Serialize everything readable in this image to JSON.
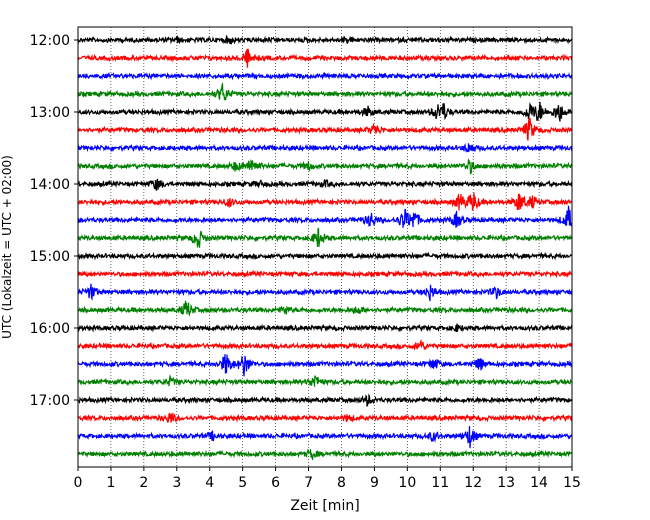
{
  "chart_data": {
    "type": "line",
    "title": "",
    "xlabel": "Zeit  [min]",
    "ylabel": "UTC (Lokalzeit = UTC + 02:00)",
    "xlim": [
      0,
      15
    ],
    "x_ticks": [
      0,
      1,
      2,
      3,
      4,
      5,
      6,
      7,
      8,
      9,
      10,
      11,
      12,
      13,
      14,
      15
    ],
    "x_tick_labels": [
      "0",
      "1",
      "2",
      "3",
      "4",
      "5",
      "6",
      "7",
      "8",
      "9",
      "10",
      "11",
      "12",
      "13",
      "14",
      "15"
    ],
    "y_tick_labels": [
      "12:00",
      "13:00",
      "14:00",
      "15:00",
      "16:00",
      "17:00"
    ],
    "grid": "vertical dotted",
    "legend": "none",
    "trace_interval_min": 15,
    "start_time": "12:00",
    "trace_colors": [
      "#000000",
      "#ff0000",
      "#0000ff",
      "#008000"
    ],
    "traces": [
      {
        "start": "12:00",
        "color": "#000000",
        "events": [
          {
            "t": 4.6,
            "a": 3
          },
          {
            "t": 8.2,
            "a": 2
          },
          {
            "t": 3.0,
            "a": 2
          }
        ]
      },
      {
        "start": "12:15",
        "color": "#ff0000",
        "events": [
          {
            "t": 5.15,
            "a": 9
          }
        ]
      },
      {
        "start": "12:30",
        "color": "#0000ff",
        "events": []
      },
      {
        "start": "12:45",
        "color": "#008000",
        "events": [
          {
            "t": 4.4,
            "a": 11
          }
        ]
      },
      {
        "start": "13:00",
        "color": "#000000",
        "events": [
          {
            "t": 8.8,
            "a": 5
          },
          {
            "t": 10.9,
            "a": 7
          },
          {
            "t": 11.1,
            "a": 8
          },
          {
            "t": 13.7,
            "a": 9
          },
          {
            "t": 14.0,
            "a": 11
          },
          {
            "t": 14.6,
            "a": 12
          }
        ]
      },
      {
        "start": "13:15",
        "color": "#ff0000",
        "events": [
          {
            "t": 9.0,
            "a": 6
          },
          {
            "t": 13.7,
            "a": 13
          }
        ]
      },
      {
        "start": "13:30",
        "color": "#0000ff",
        "events": [
          {
            "t": 11.9,
            "a": 6
          }
        ]
      },
      {
        "start": "13:45",
        "color": "#008000",
        "events": [
          {
            "t": 4.8,
            "a": 5
          },
          {
            "t": 5.3,
            "a": 9
          },
          {
            "t": 7.0,
            "a": 4
          },
          {
            "t": 11.9,
            "a": 7
          }
        ]
      },
      {
        "start": "14:00",
        "color": "#000000",
        "events": [
          {
            "t": 2.4,
            "a": 6
          },
          {
            "t": 5.5,
            "a": 3
          },
          {
            "t": 7.5,
            "a": 3
          }
        ]
      },
      {
        "start": "14:15",
        "color": "#ff0000",
        "events": [
          {
            "t": 4.6,
            "a": 4
          },
          {
            "t": 11.6,
            "a": 9
          },
          {
            "t": 12.0,
            "a": 11
          },
          {
            "t": 13.4,
            "a": 10
          },
          {
            "t": 13.8,
            "a": 6
          }
        ]
      },
      {
        "start": "14:30",
        "color": "#0000ff",
        "events": [
          {
            "t": 8.9,
            "a": 8
          },
          {
            "t": 9.9,
            "a": 11
          },
          {
            "t": 10.2,
            "a": 10
          },
          {
            "t": 11.5,
            "a": 8
          },
          {
            "t": 14.9,
            "a": 13
          }
        ]
      },
      {
        "start": "14:45",
        "color": "#008000",
        "events": [
          {
            "t": 3.65,
            "a": 11
          },
          {
            "t": 7.3,
            "a": 10
          }
        ]
      },
      {
        "start": "15:00",
        "color": "#000000",
        "events": []
      },
      {
        "start": "15:15",
        "color": "#ff0000",
        "events": []
      },
      {
        "start": "15:30",
        "color": "#0000ff",
        "events": [
          {
            "t": 0.4,
            "a": 8
          },
          {
            "t": 10.7,
            "a": 8
          },
          {
            "t": 12.7,
            "a": 6
          }
        ]
      },
      {
        "start": "15:45",
        "color": "#008000",
        "events": [
          {
            "t": 3.3,
            "a": 10
          },
          {
            "t": 6.3,
            "a": 4
          },
          {
            "t": 8.5,
            "a": 4
          }
        ]
      },
      {
        "start": "16:00",
        "color": "#000000",
        "events": [
          {
            "t": 11.5,
            "a": 3
          }
        ]
      },
      {
        "start": "16:15",
        "color": "#ff0000",
        "events": [
          {
            "t": 10.4,
            "a": 6
          }
        ]
      },
      {
        "start": "16:30",
        "color": "#0000ff",
        "events": [
          {
            "t": 4.5,
            "a": 12
          },
          {
            "t": 5.05,
            "a": 13
          },
          {
            "t": 10.8,
            "a": 6
          },
          {
            "t": 12.2,
            "a": 7
          }
        ]
      },
      {
        "start": "16:45",
        "color": "#008000",
        "events": [
          {
            "t": 2.8,
            "a": 4
          },
          {
            "t": 7.2,
            "a": 8
          }
        ]
      },
      {
        "start": "17:00",
        "color": "#000000",
        "events": [
          {
            "t": 8.8,
            "a": 5
          }
        ]
      },
      {
        "start": "17:15",
        "color": "#ff0000",
        "events": [
          {
            "t": 2.8,
            "a": 6
          },
          {
            "t": 8.2,
            "a": 3
          }
        ]
      },
      {
        "start": "17:30",
        "color": "#0000ff",
        "events": [
          {
            "t": 4.1,
            "a": 4
          },
          {
            "t": 10.8,
            "a": 5
          },
          {
            "t": 11.9,
            "a": 11
          }
        ]
      },
      {
        "start": "17:45",
        "color": "#008000",
        "events": [
          {
            "t": 7.1,
            "a": 5
          }
        ]
      }
    ]
  }
}
